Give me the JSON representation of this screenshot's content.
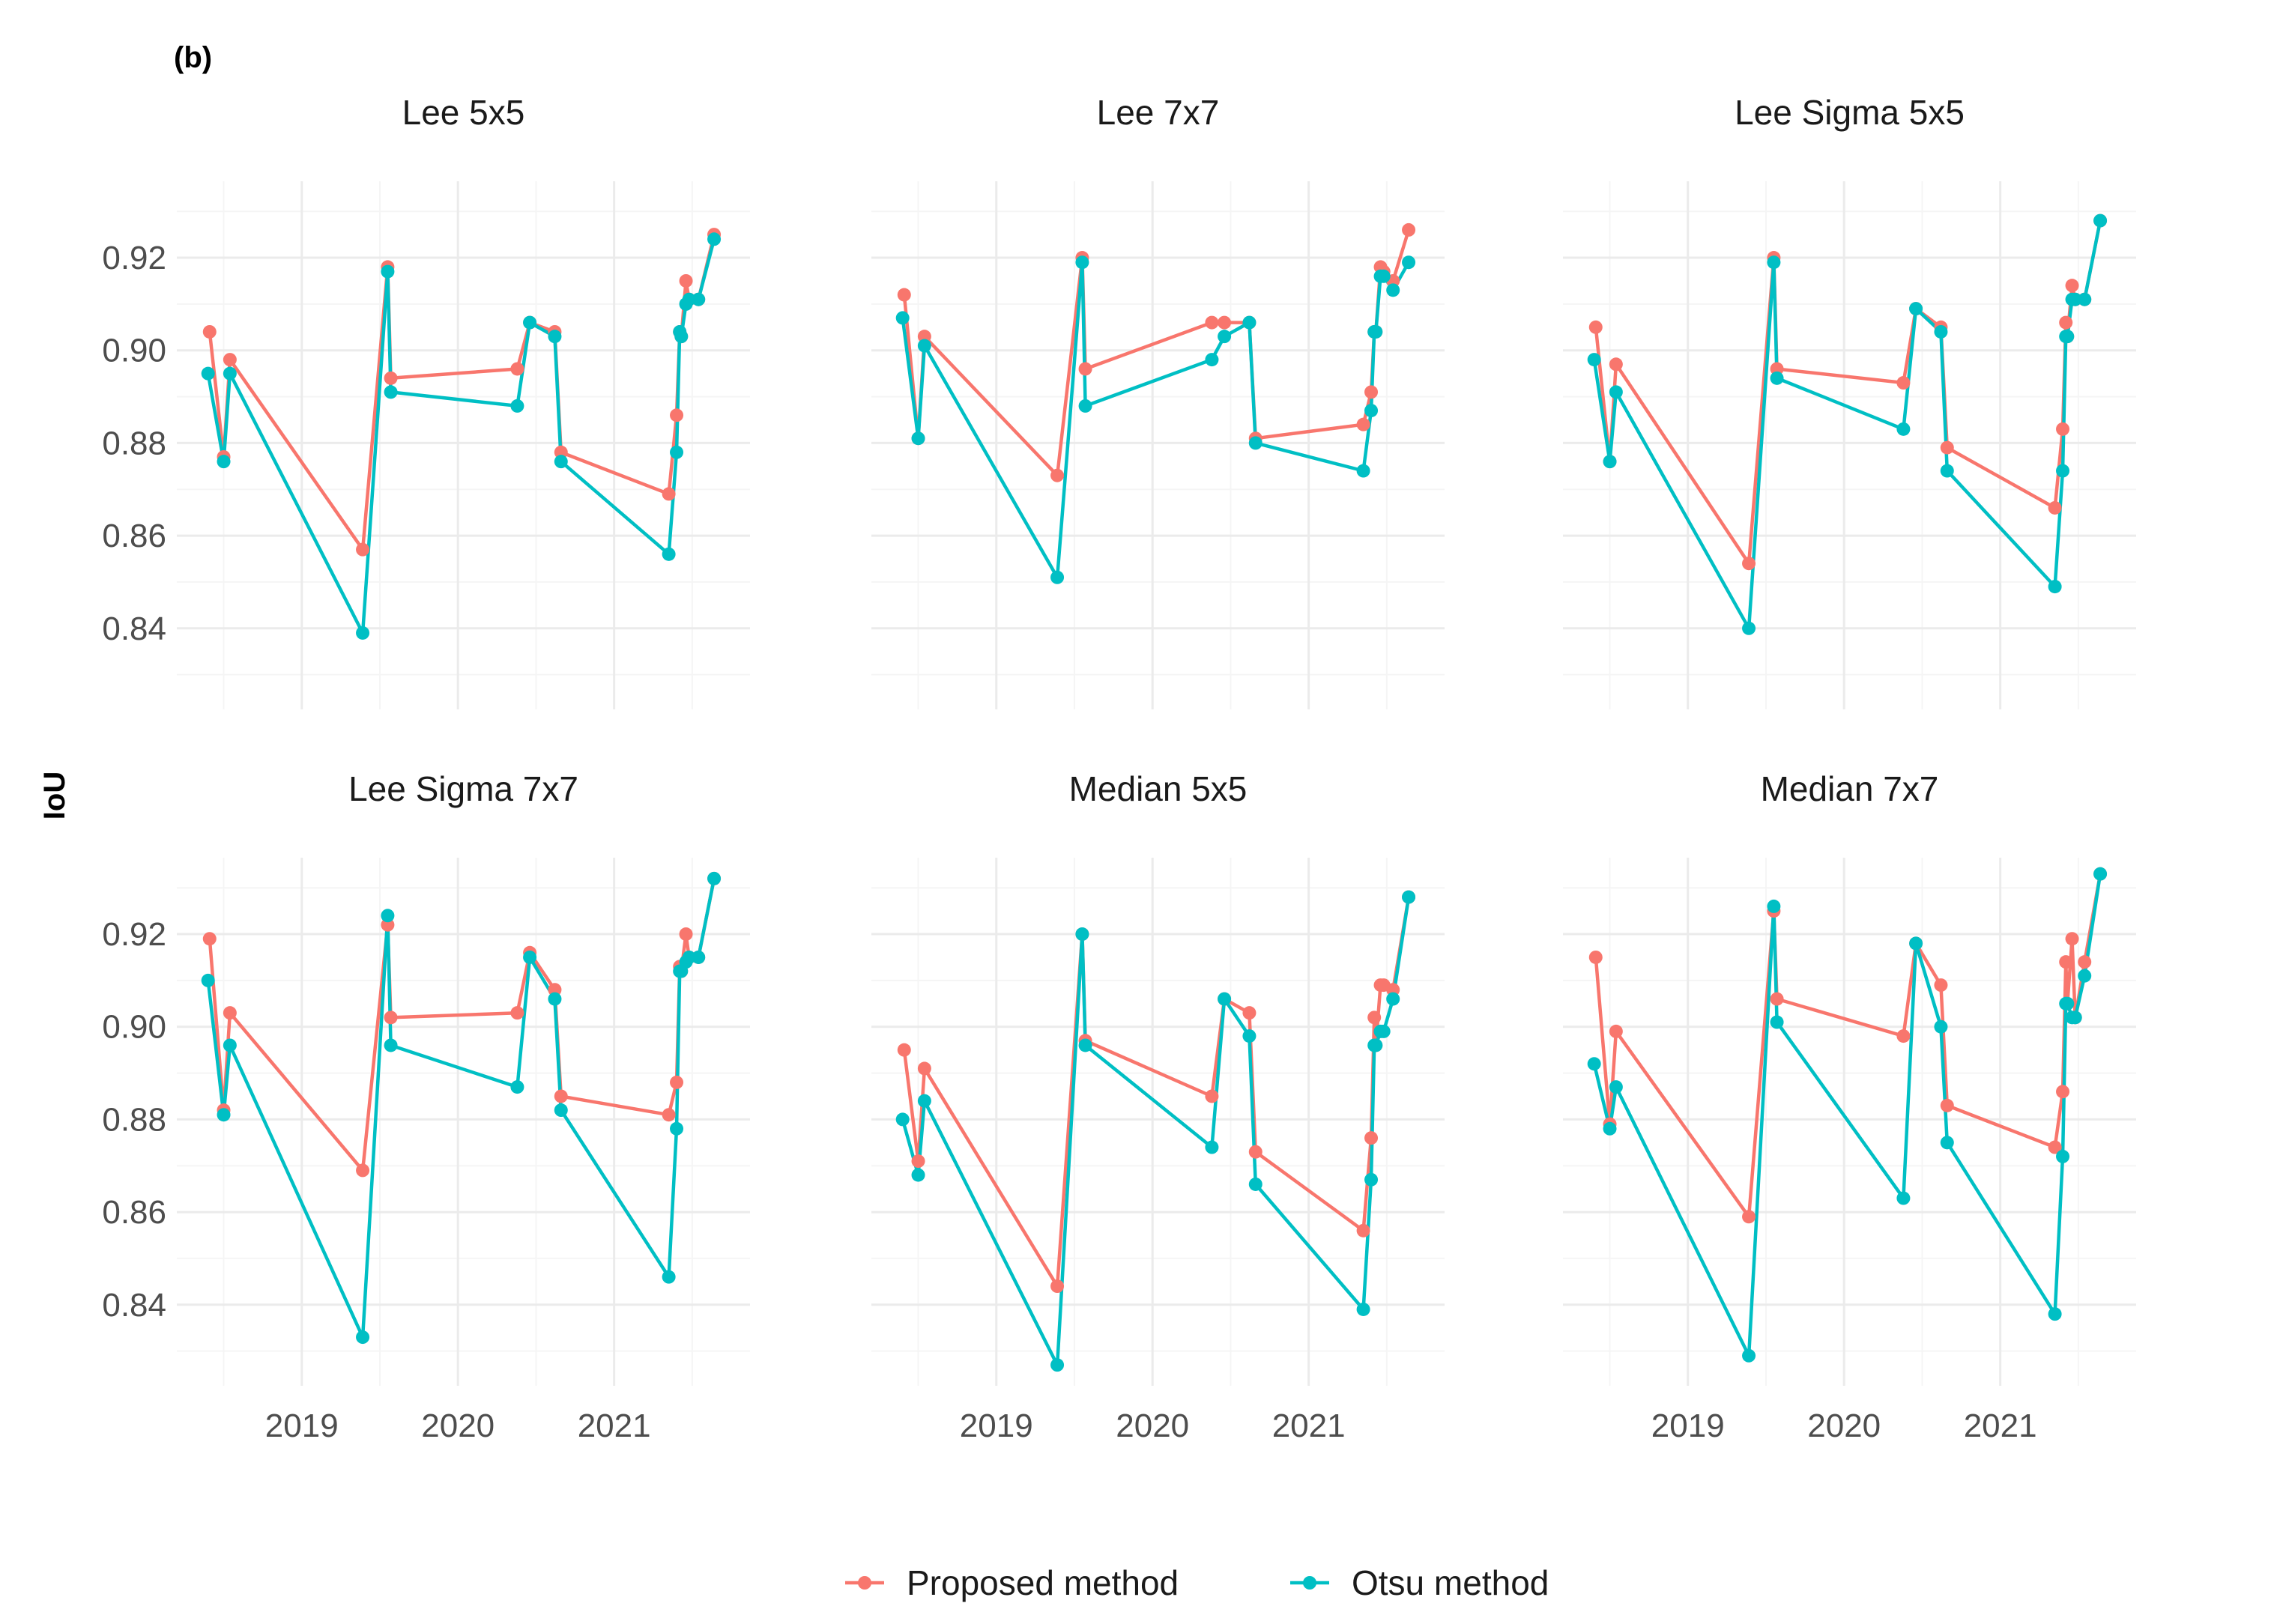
{
  "panel_label": "(b)",
  "y_axis_title": "IoU",
  "colors": {
    "proposed": "#F8766D",
    "otsu": "#00BFC4",
    "grid_major": "#EBEBEB",
    "grid_minor": "#F5F5F5"
  },
  "chart_data": {
    "type": "line",
    "x_unit": "decimal year",
    "xlim": [
      2018.2,
      2021.87
    ],
    "ylim": [
      0.8225,
      0.9365
    ],
    "x_ticks": [
      2019,
      2020,
      2021
    ],
    "x_tick_labels": [
      "2019",
      "2020",
      "2021"
    ],
    "y_ticks": [
      0.84,
      0.86,
      0.88,
      0.9,
      0.92
    ],
    "y_tick_labels": [
      "0.84",
      "0.86",
      "0.88",
      "0.90",
      "0.92"
    ],
    "legend": {
      "position": "bottom",
      "entries": [
        "Proposed method",
        "Otsu method"
      ]
    },
    "panels": [
      {
        "title": "Lee 5x5",
        "series": [
          {
            "name": "Proposed method",
            "x": [
              2018.41,
              2018.5,
              2018.54,
              2019.39,
              2019.55,
              2019.57,
              2020.38,
              2020.46,
              2020.62,
              2020.66,
              2021.35,
              2021.4,
              2021.42,
              2021.43,
              2021.46,
              2021.48,
              2021.54,
              2021.64
            ],
            "y": [
              0.904,
              0.877,
              0.898,
              0.857,
              0.918,
              0.894,
              0.896,
              0.906,
              0.904,
              0.878,
              0.869,
              0.886,
              0.904,
              0.903,
              0.915,
              0.911,
              0.911,
              0.925
            ]
          },
          {
            "name": "Otsu method",
            "x": [
              2018.4,
              2018.5,
              2018.54,
              2019.39,
              2019.55,
              2019.57,
              2020.38,
              2020.46,
              2020.62,
              2020.66,
              2021.35,
              2021.4,
              2021.42,
              2021.43,
              2021.46,
              2021.48,
              2021.54,
              2021.64
            ],
            "y": [
              0.895,
              0.876,
              0.895,
              0.839,
              0.917,
              0.891,
              0.888,
              0.906,
              0.903,
              0.876,
              0.856,
              0.878,
              0.904,
              0.903,
              0.91,
              0.911,
              0.911,
              0.924
            ]
          }
        ]
      },
      {
        "title": "Lee 7x7",
        "series": [
          {
            "name": "Proposed method",
            "x": [
              2018.41,
              2018.5,
              2018.54,
              2019.39,
              2019.55,
              2019.57,
              2020.38,
              2020.46,
              2020.62,
              2020.66,
              2021.35,
              2021.4,
              2021.42,
              2021.43,
              2021.46,
              2021.48,
              2021.54,
              2021.64
            ],
            "y": [
              0.912,
              0.881,
              0.903,
              0.873,
              0.92,
              0.896,
              0.906,
              0.906,
              0.906,
              0.881,
              0.884,
              0.891,
              0.904,
              0.904,
              0.918,
              0.917,
              0.915,
              0.926
            ]
          },
          {
            "name": "Otsu method",
            "x": [
              2018.4,
              2018.5,
              2018.54,
              2019.39,
              2019.55,
              2019.57,
              2020.38,
              2020.46,
              2020.62,
              2020.66,
              2021.35,
              2021.4,
              2021.42,
              2021.43,
              2021.46,
              2021.48,
              2021.54,
              2021.64
            ],
            "y": [
              0.907,
              0.881,
              0.901,
              0.851,
              0.919,
              0.888,
              0.898,
              0.903,
              0.906,
              0.88,
              0.874,
              0.887,
              0.904,
              0.904,
              0.916,
              0.916,
              0.913,
              0.919
            ]
          }
        ]
      },
      {
        "title": "Lee Sigma 5x5",
        "series": [
          {
            "name": "Proposed method",
            "x": [
              2018.41,
              2018.5,
              2018.54,
              2019.39,
              2019.55,
              2019.57,
              2020.38,
              2020.46,
              2020.62,
              2020.66,
              2021.35,
              2021.4,
              2021.42,
              2021.43,
              2021.46,
              2021.48,
              2021.54,
              2021.64
            ],
            "y": [
              0.905,
              0.876,
              0.897,
              0.854,
              0.92,
              0.896,
              0.893,
              0.909,
              0.905,
              0.879,
              0.866,
              0.883,
              0.906,
              0.903,
              0.914,
              0.911,
              0.911,
              0.928
            ]
          },
          {
            "name": "Otsu method",
            "x": [
              2018.4,
              2018.5,
              2018.54,
              2019.39,
              2019.55,
              2019.57,
              2020.38,
              2020.46,
              2020.62,
              2020.66,
              2021.35,
              2021.4,
              2021.42,
              2021.43,
              2021.46,
              2021.48,
              2021.54,
              2021.64
            ],
            "y": [
              0.898,
              0.876,
              0.891,
              0.84,
              0.919,
              0.894,
              0.883,
              0.909,
              0.904,
              0.874,
              0.849,
              0.874,
              0.903,
              0.903,
              0.911,
              0.911,
              0.911,
              0.928
            ]
          }
        ]
      },
      {
        "title": "Lee Sigma 7x7",
        "series": [
          {
            "name": "Proposed method",
            "x": [
              2018.41,
              2018.5,
              2018.54,
              2019.39,
              2019.55,
              2019.57,
              2020.38,
              2020.46,
              2020.62,
              2020.66,
              2021.35,
              2021.4,
              2021.42,
              2021.43,
              2021.46,
              2021.48,
              2021.54,
              2021.64
            ],
            "y": [
              0.919,
              0.882,
              0.903,
              0.869,
              0.922,
              0.902,
              0.903,
              0.916,
              0.908,
              0.885,
              0.881,
              0.888,
              0.913,
              0.912,
              0.92,
              0.915,
              0.915,
              0.932
            ]
          },
          {
            "name": "Otsu method",
            "x": [
              2018.4,
              2018.5,
              2018.54,
              2019.39,
              2019.55,
              2019.57,
              2020.38,
              2020.46,
              2020.62,
              2020.66,
              2021.35,
              2021.4,
              2021.42,
              2021.43,
              2021.46,
              2021.48,
              2021.54,
              2021.64
            ],
            "y": [
              0.91,
              0.881,
              0.896,
              0.833,
              0.924,
              0.896,
              0.887,
              0.915,
              0.906,
              0.882,
              0.846,
              0.878,
              0.912,
              0.912,
              0.914,
              0.915,
              0.915,
              0.932
            ]
          }
        ]
      },
      {
        "title": "Median 5x5",
        "series": [
          {
            "name": "Proposed method",
            "x": [
              2018.41,
              2018.5,
              2018.54,
              2019.39,
              2019.55,
              2019.57,
              2020.38,
              2020.46,
              2020.62,
              2020.66,
              2021.35,
              2021.4,
              2021.42,
              2021.43,
              2021.46,
              2021.48,
              2021.54,
              2021.64
            ],
            "y": [
              0.895,
              0.871,
              0.891,
              0.844,
              0.92,
              0.897,
              0.885,
              0.906,
              0.903,
              0.873,
              0.856,
              0.876,
              0.902,
              0.896,
              0.909,
              0.909,
              0.908,
              0.928
            ]
          },
          {
            "name": "Otsu method",
            "x": [
              2018.4,
              2018.5,
              2018.54,
              2019.39,
              2019.55,
              2019.57,
              2020.38,
              2020.46,
              2020.62,
              2020.66,
              2021.35,
              2021.4,
              2021.42,
              2021.43,
              2021.46,
              2021.48,
              2021.54,
              2021.64
            ],
            "y": [
              0.88,
              0.868,
              0.884,
              0.827,
              0.92,
              0.896,
              0.874,
              0.906,
              0.898,
              0.866,
              0.839,
              0.867,
              0.896,
              0.896,
              0.899,
              0.899,
              0.906,
              0.928
            ]
          }
        ]
      },
      {
        "title": "Median 7x7",
        "series": [
          {
            "name": "Proposed method",
            "x": [
              2018.41,
              2018.5,
              2018.54,
              2019.39,
              2019.55,
              2019.57,
              2020.38,
              2020.46,
              2020.62,
              2020.66,
              2021.35,
              2021.4,
              2021.42,
              2021.43,
              2021.46,
              2021.48,
              2021.54,
              2021.64
            ],
            "y": [
              0.915,
              0.879,
              0.899,
              0.859,
              0.925,
              0.906,
              0.898,
              0.918,
              0.909,
              0.883,
              0.874,
              0.886,
              0.914,
              0.905,
              0.919,
              0.902,
              0.914,
              0.933
            ]
          },
          {
            "name": "Otsu method",
            "x": [
              2018.4,
              2018.5,
              2018.54,
              2019.39,
              2019.55,
              2019.57,
              2020.38,
              2020.46,
              2020.62,
              2020.66,
              2021.35,
              2021.4,
              2021.42,
              2021.43,
              2021.46,
              2021.48,
              2021.54,
              2021.64
            ],
            "y": [
              0.892,
              0.878,
              0.887,
              0.829,
              0.926,
              0.901,
              0.863,
              0.918,
              0.9,
              0.875,
              0.838,
              0.872,
              0.905,
              0.905,
              0.902,
              0.902,
              0.911,
              0.933
            ]
          }
        ]
      }
    ]
  }
}
